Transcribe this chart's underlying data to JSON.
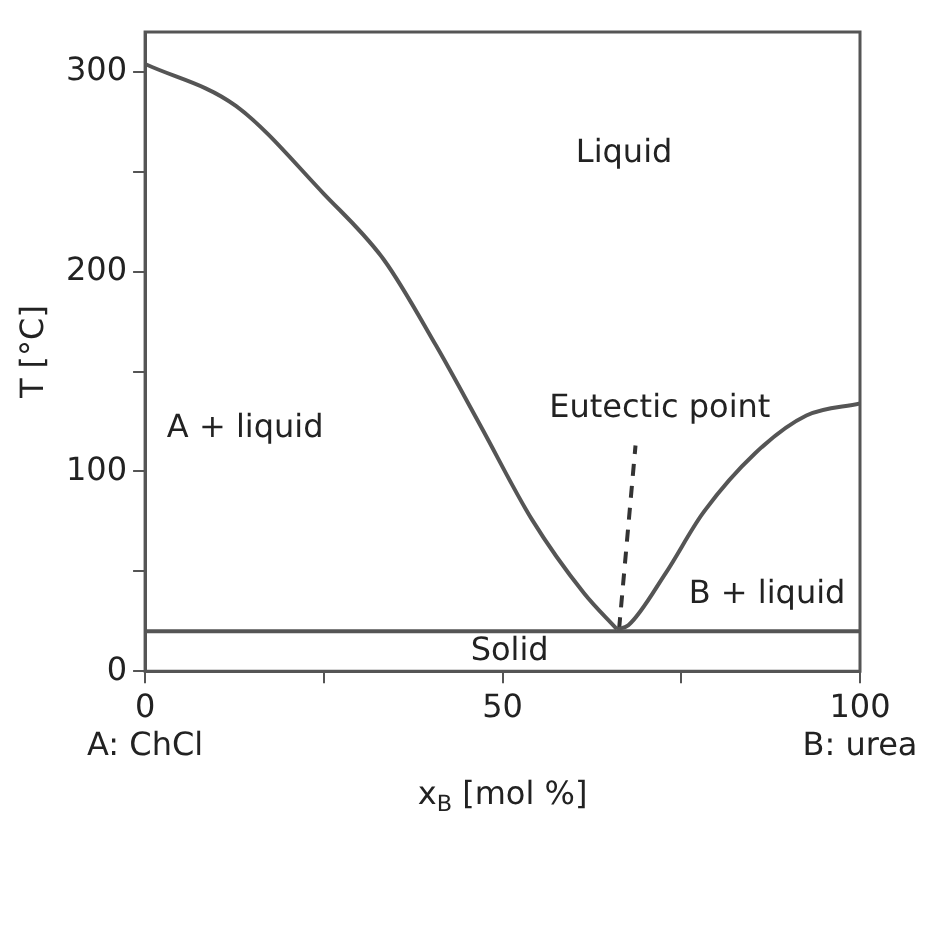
{
  "chart_data": {
    "type": "line",
    "xlabel": "x$_{B}$ [mol %]",
    "ylabel": "T [°C]",
    "xlim": [
      0,
      100
    ],
    "ylim": [
      0,
      320
    ],
    "xticks": [
      {
        "value": 0,
        "label": "0\nA: ChCl"
      },
      {
        "value": 25,
        "label": null
      },
      {
        "value": 50,
        "label": "50"
      },
      {
        "value": 75,
        "label": null
      },
      {
        "value": 100,
        "label": "100\nB: urea"
      }
    ],
    "yticks": [
      0,
      {
        "value": 50,
        "label": null
      },
      100,
      {
        "value": 150,
        "label": null
      },
      200,
      {
        "value": 250,
        "label": null
      },
      300
    ],
    "grid": false,
    "legend": false,
    "marker": "none",
    "series": [
      {
        "color": "#555555",
        "x": [
          0,
          12.7,
          25,
          33.4,
          40.7,
          46.9,
          54.1,
          61.4,
          66
        ],
        "values": [
          304,
          283,
          239,
          206,
          163,
          123,
          76,
          39,
          21
        ]
      },
      {
        "color": "#555555",
        "x": [
          66,
          67.6,
          72.8,
          78,
          85.3,
          92.5,
          100
        ],
        "values": [
          21,
          23,
          49,
          79,
          109,
          128,
          134
        ]
      },
      {
        "color": "#333333",
        "line_style": "dashed",
        "x": [
          66.3,
          68.6
        ],
        "values": [
          21,
          113
        ]
      }
    ],
    "ref_lines": [
      {
        "axis": "y",
        "value": 20,
        "color": "#555555"
      }
    ],
    "annotations": [
      "Liquid",
      "A + liquid",
      "Eutectic point",
      "B + liquid",
      "Solid"
    ]
  }
}
